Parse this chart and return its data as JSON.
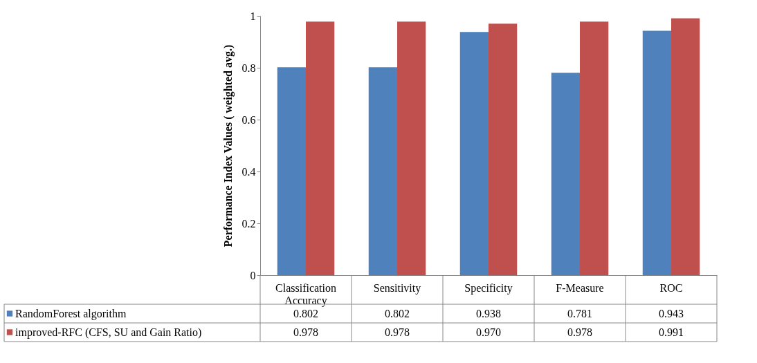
{
  "chart_data": {
    "type": "bar",
    "ylabel": "Performance Index Values ( weighted avg.)",
    "categories": [
      "Classification Accuracy",
      "Sensitivity",
      "Specificity",
      "F-Measure",
      "ROC"
    ],
    "series": [
      {
        "name": "RandomForest algorithm",
        "color": "#4f81bd",
        "values": [
          0.802,
          0.802,
          0.938,
          0.781,
          0.943
        ],
        "value_labels": [
          "0.802",
          "0.802",
          "0.938",
          "0.781",
          "0.943"
        ]
      },
      {
        "name": "improved-RFC (CFS, SU and Gain Ratio)",
        "color": "#c0504d",
        "values": [
          0.978,
          0.978,
          0.97,
          0.978,
          0.991
        ],
        "value_labels": [
          "0.978",
          "0.978",
          "0.970",
          "0.978",
          "0.991"
        ]
      }
    ],
    "ylim": [
      0,
      1
    ],
    "yticks": [
      0,
      0.2,
      0.4,
      0.6,
      0.8,
      1
    ],
    "grid": false,
    "legend": "bottom"
  }
}
